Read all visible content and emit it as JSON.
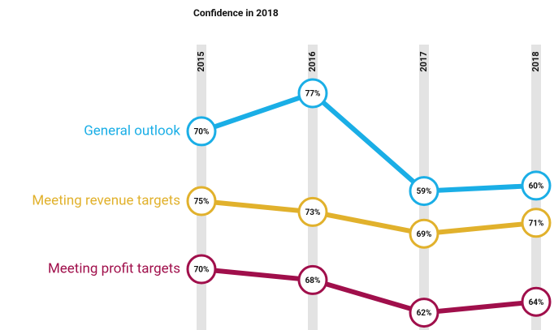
{
  "chart_data": {
    "type": "line",
    "title": "Confidence in 2018",
    "categories": [
      "2015",
      "2016",
      "2017",
      "2018"
    ],
    "series": [
      {
        "name": "General outlook",
        "color": "#1aaee6",
        "values": [
          70,
          77,
          59,
          60
        ],
        "value_labels": [
          "70%",
          "77%",
          "59%",
          "60%"
        ]
      },
      {
        "name": "Meeting revenue targets",
        "color": "#e1b12c",
        "values": [
          75,
          73,
          69,
          71
        ],
        "value_labels": [
          "75%",
          "73%",
          "69%",
          "71%"
        ]
      },
      {
        "name": "Meeting profit targets",
        "color": "#a00f4b",
        "values": [
          70,
          68,
          62,
          64
        ],
        "value_labels": [
          "70%",
          "68%",
          "62%",
          "64%"
        ]
      }
    ]
  }
}
